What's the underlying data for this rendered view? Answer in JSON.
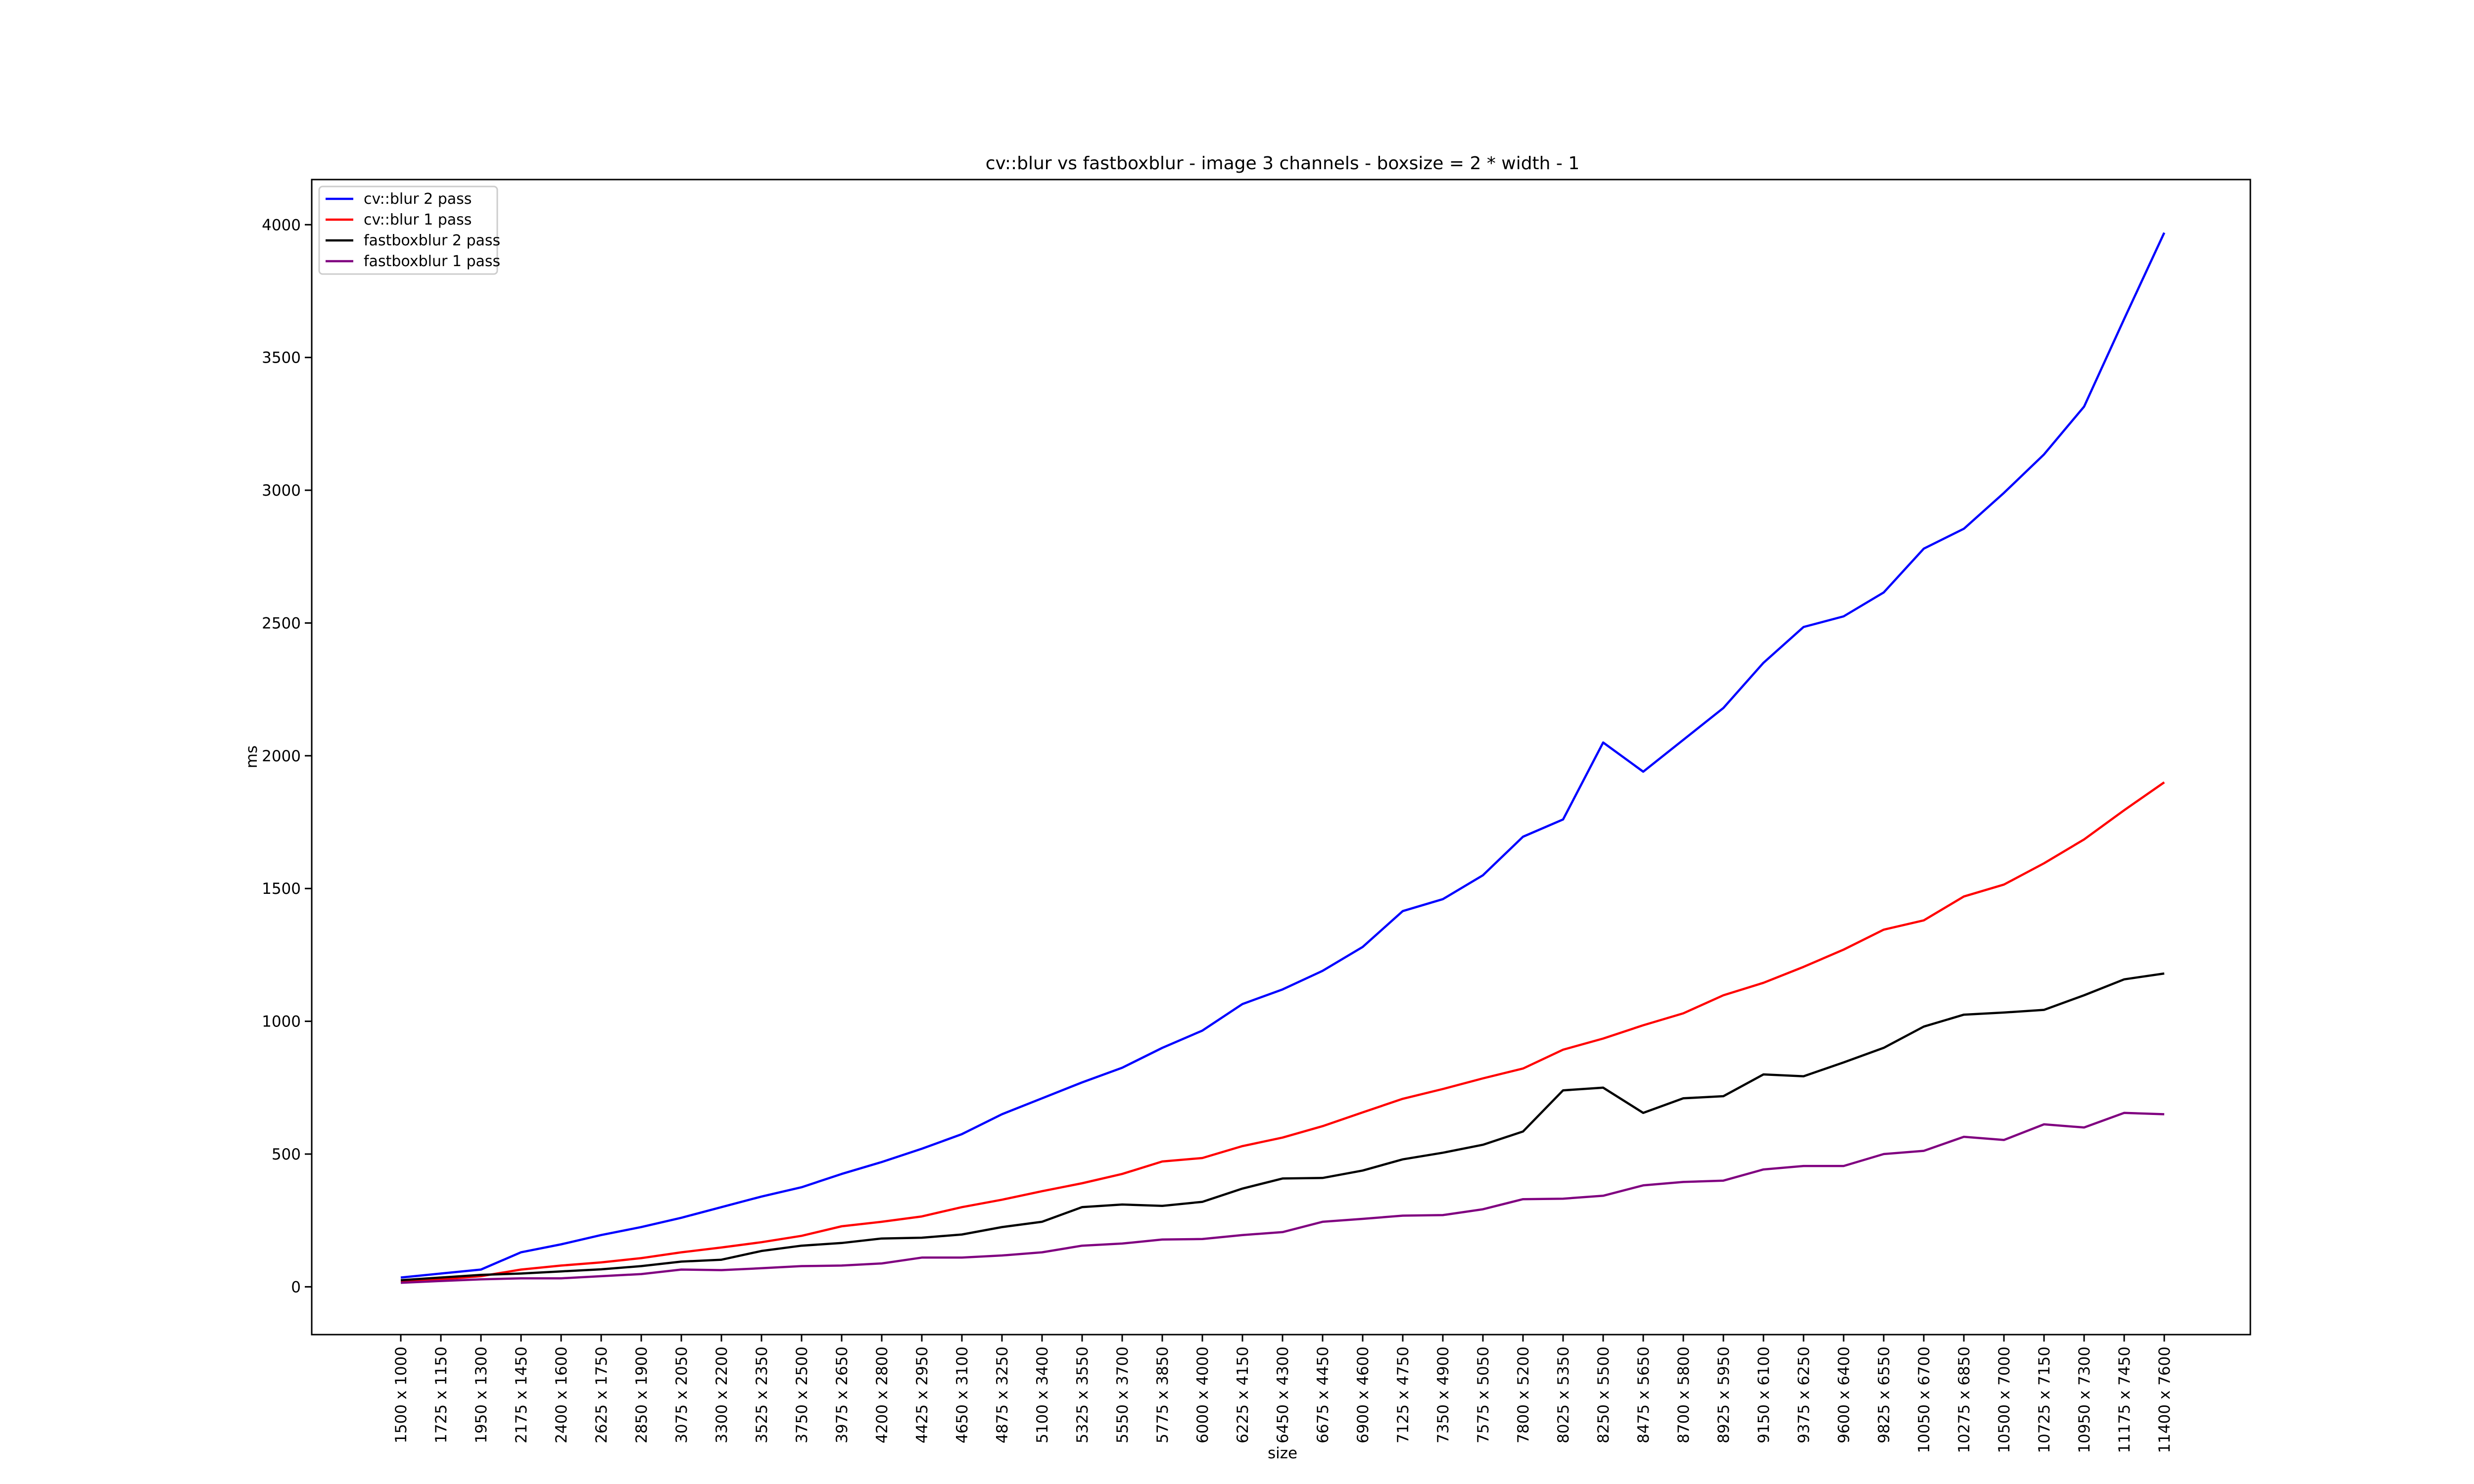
{
  "chart_data": {
    "type": "line",
    "title": "cv::blur vs fastboxblur - image 3 channels - boxsize = 2 * width - 1",
    "xlabel": "size",
    "ylabel": "ms",
    "ylim": [
      -180,
      4170
    ],
    "yticks": [
      0,
      500,
      1000,
      1500,
      2000,
      2500,
      3000,
      3500,
      4000
    ],
    "grid": false,
    "legend_position": "top-left",
    "categories": [
      "1500 x 1000",
      "1725 x 1150",
      "1950 x 1300",
      "2175 x 1450",
      "2400 x 1600",
      "2625 x 1750",
      "2850 x 1900",
      "3075 x 2050",
      "3300 x 2200",
      "3525 x 2350",
      "3750 x 2500",
      "3975 x 2650",
      "4200 x 2800",
      "4425 x 2950",
      "4650 x 3100",
      "4875 x 3250",
      "5100 x 3400",
      "5325 x 3550",
      "5550 x 3700",
      "5775 x 3850",
      "6000 x 4000",
      "6225 x 4150",
      "6450 x 4300",
      "6675 x 4450",
      "6900 x 4600",
      "7125 x 4750",
      "7350 x 4900",
      "7575 x 5050",
      "7800 x 5200",
      "8025 x 5350",
      "8250 x 5500",
      "8475 x 5650",
      "8700 x 5800",
      "8925 x 5950",
      "9150 x 6100",
      "9375 x 6250",
      "9600 x 6400",
      "9825 x 6550",
      "10050 x 6700",
      "10275 x 6850",
      "10500 x 7000",
      "10725 x 7150",
      "10950 x 7300",
      "11175 x 7450",
      "11400 x 7600"
    ],
    "series": [
      {
        "name": "cv::blur 2 pass",
        "color": "#0000ff",
        "values": [
          35,
          50,
          65,
          130,
          160,
          195,
          225,
          260,
          300,
          340,
          375,
          425,
          470,
          520,
          575,
          650,
          710,
          770,
          825,
          900,
          965,
          1065,
          1120,
          1190,
          1280,
          1415,
          1460,
          1550,
          1695,
          1760,
          2050,
          1940,
          2060,
          2180,
          2350,
          2485,
          2525,
          2615,
          2780,
          2855,
          2990,
          3135,
          3315,
          3645,
          3970
        ]
      },
      {
        "name": "cv::blur 1 pass",
        "color": "#ff0000",
        "values": [
          20,
          28,
          40,
          65,
          80,
          92,
          108,
          130,
          148,
          168,
          192,
          228,
          245,
          265,
          300,
          328,
          360,
          390,
          425,
          472,
          485,
          530,
          562,
          605,
          657,
          708,
          745,
          785,
          822,
          893,
          935,
          985,
          1030,
          1098,
          1145,
          1205,
          1270,
          1345,
          1380,
          1470,
          1515,
          1595,
          1685,
          1795,
          1900
        ]
      },
      {
        "name": "fastboxblur 2 pass",
        "color": "#000000",
        "values": [
          25,
          35,
          45,
          50,
          58,
          66,
          78,
          95,
          102,
          135,
          155,
          165,
          182,
          185,
          197,
          225,
          245,
          300,
          310,
          305,
          320,
          370,
          408,
          410,
          438,
          480,
          505,
          535,
          585,
          740,
          750,
          655,
          710,
          718,
          800,
          793,
          845,
          900,
          980,
          1025,
          1033,
          1043,
          1098,
          1158,
          1180
        ]
      },
      {
        "name": "fastboxblur 1 pass",
        "color": "#800080",
        "values": [
          15,
          22,
          28,
          32,
          32,
          40,
          48,
          65,
          63,
          70,
          78,
          80,
          88,
          110,
          110,
          118,
          130,
          155,
          163,
          178,
          180,
          195,
          206,
          245,
          256,
          268,
          270,
          292,
          330,
          332,
          343,
          382,
          395,
          400,
          442,
          455,
          455,
          500,
          512,
          565,
          553,
          612,
          600,
          655,
          650
        ]
      }
    ]
  }
}
